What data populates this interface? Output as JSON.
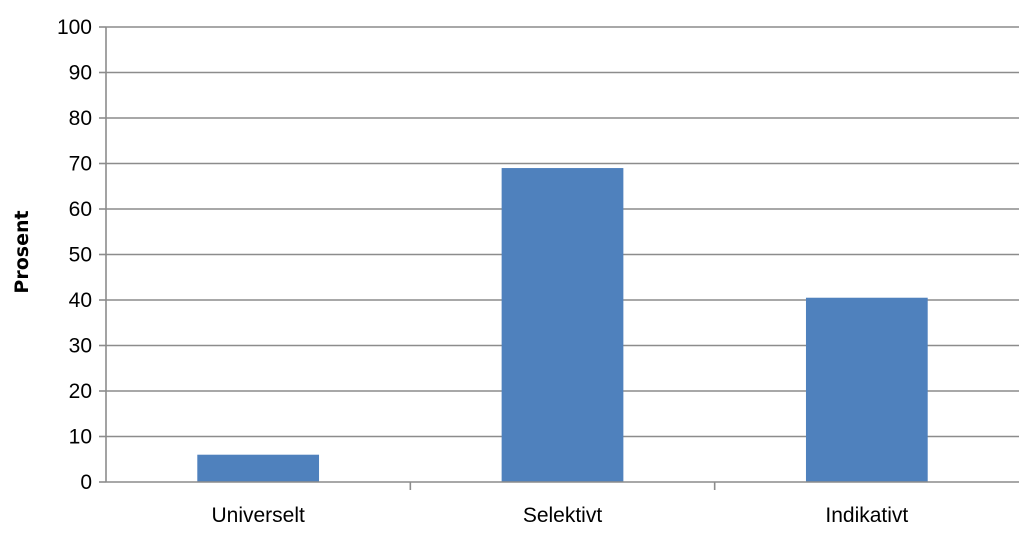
{
  "chart_data": {
    "type": "bar",
    "title": "",
    "xlabel": "",
    "ylabel": "Prosent",
    "categories": [
      "Universelt",
      "Selektivt",
      "Indikativt"
    ],
    "values": [
      6,
      69,
      40.5
    ],
    "ylim": [
      0,
      100
    ],
    "yticks": [
      "0",
      "10",
      "20",
      "30",
      "40",
      "50",
      "60",
      "70",
      "80",
      "90",
      "100"
    ],
    "grid": true,
    "legend": "none",
    "bar_color": "#4f81bd"
  }
}
